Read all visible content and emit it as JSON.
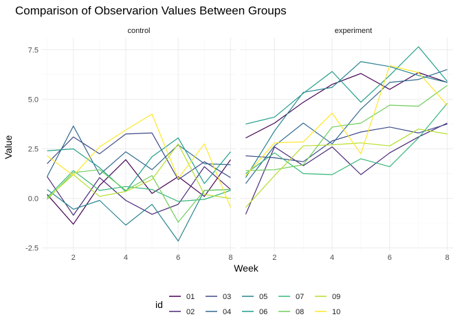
{
  "chart_data": {
    "type": "line",
    "title": "Comparison of Observarion Values Between Groups",
    "xlabel": "Week",
    "ylabel": "Value",
    "xlim": [
      0.8,
      8.2
    ],
    "ylim": [
      -2.65,
      8.1
    ],
    "x_ticks": [
      2,
      4,
      6,
      8
    ],
    "y_ticks": [
      -2.5,
      0,
      2.5,
      5,
      7.5
    ],
    "y_tick_labels": [
      "-2.5",
      "0.0",
      "2.5",
      "5.0",
      "7.5"
    ],
    "grid": true,
    "legend_position": "bottom",
    "legend_title": "id",
    "ids": [
      "01",
      "02",
      "03",
      "04",
      "05",
      "06",
      "07",
      "08",
      "09",
      "10"
    ],
    "colors": {
      "01": "#440154",
      "02": "#482878",
      "03": "#3E4A89",
      "04": "#31688E",
      "05": "#26828E",
      "06": "#1F9E89",
      "07": "#35B779",
      "08": "#6DCD59",
      "09": "#B4DE2C",
      "10": "#FDE725"
    },
    "weeks": [
      1,
      2,
      3,
      4,
      5,
      6,
      7,
      8
    ],
    "panels": [
      {
        "name": "control",
        "series": [
          {
            "name": "01",
            "values": [
              0.2,
              -1.3,
              0.65,
              1.95,
              0.25,
              1.1,
              0.1,
              1.95
            ]
          },
          {
            "name": "02",
            "values": [
              1.1,
              -0.85,
              1.05,
              -0.1,
              -0.8,
              -0.3,
              1.6,
              0.45
            ]
          },
          {
            "name": "03",
            "values": [
              1.75,
              3.1,
              2.25,
              3.25,
              3.3,
              0.95,
              1.85,
              1.05
            ]
          },
          {
            "name": "04",
            "values": [
              1.1,
              3.65,
              1.2,
              2.35,
              1.45,
              2.7,
              1.75,
              1.7
            ]
          },
          {
            "name": "05",
            "values": [
              0.45,
              -0.55,
              -0.1,
              -1.35,
              -0.3,
              -2.15,
              0.4,
              0.45
            ]
          },
          {
            "name": "06",
            "values": [
              2.4,
              2.5,
              1.55,
              0.35,
              2.1,
              3.05,
              0.75,
              2.35
            ]
          },
          {
            "name": "07",
            "values": [
              0.05,
              1.4,
              0.4,
              0.6,
              0.45,
              -0.15,
              -0.05,
              0.4
            ]
          },
          {
            "name": "08",
            "values": [
              -0.05,
              1.3,
              1.45,
              0.4,
              1.15,
              -1.2,
              0.4,
              0.45
            ]
          },
          {
            "name": "09",
            "values": [
              0.0,
              1.2,
              0.1,
              0.35,
              0.95,
              2.75,
              0.2,
              0.0
            ]
          },
          {
            "name": "10",
            "values": [
              2.15,
              1.15,
              2.6,
              3.45,
              4.25,
              1.0,
              2.75,
              -0.45
            ]
          }
        ]
      },
      {
        "name": "experiment",
        "series": [
          {
            "name": "01",
            "values": [
              3.05,
              3.8,
              4.85,
              5.75,
              6.3,
              5.5,
              6.35,
              5.85
            ]
          },
          {
            "name": "02",
            "values": [
              -0.8,
              2.6,
              1.65,
              2.6,
              1.2,
              2.3,
              3.1,
              3.8
            ]
          },
          {
            "name": "03",
            "values": [
              2.15,
              2.05,
              1.85,
              2.9,
              3.35,
              3.6,
              3.3,
              3.75
            ]
          },
          {
            "name": "04",
            "values": [
              0.75,
              2.65,
              3.8,
              2.75,
              4.5,
              5.85,
              6.0,
              6.5
            ]
          },
          {
            "name": "05",
            "values": [
              1.05,
              3.4,
              5.35,
              5.6,
              6.9,
              6.65,
              6.2,
              5.85
            ]
          },
          {
            "name": "06",
            "values": [
              3.75,
              4.1,
              5.3,
              6.4,
              4.85,
              6.2,
              7.65,
              5.9
            ]
          },
          {
            "name": "07",
            "values": [
              1.25,
              2.3,
              1.25,
              1.2,
              2.0,
              1.6,
              3.05,
              4.8
            ]
          },
          {
            "name": "08",
            "values": [
              1.4,
              1.45,
              1.7,
              3.6,
              3.8,
              4.7,
              4.65,
              5.7
            ]
          },
          {
            "name": "09",
            "values": [
              -0.45,
              1.15,
              2.65,
              2.7,
              2.8,
              2.65,
              3.5,
              3.25
            ]
          },
          {
            "name": "10",
            "values": [
              1.15,
              2.8,
              2.85,
              4.3,
              2.25,
              6.7,
              6.35,
              4.7
            ]
          }
        ]
      }
    ]
  }
}
